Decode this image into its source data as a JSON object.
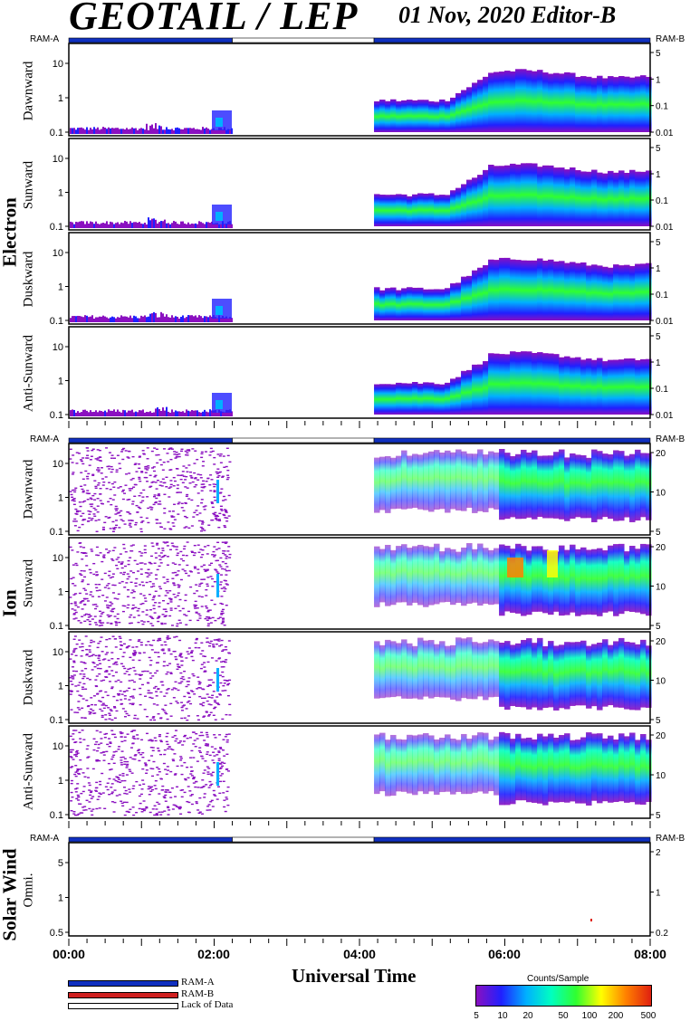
{
  "header": {
    "title": "GEOTAIL / LEP",
    "date_editor": "01 Nov, 2020   Editor-B"
  },
  "groups": {
    "electron": "Electron",
    "ion": "Ion",
    "solar_wind": "Solar Wind"
  },
  "ram_labels": {
    "a": "RAM-A",
    "b": "RAM-B"
  },
  "x_axis": {
    "label": "Universal Time",
    "ticks": [
      "00:00",
      "02:00",
      "04:00",
      "06:00",
      "08:00"
    ]
  },
  "legend": {
    "items": [
      {
        "label": "RAM-A",
        "color": "#1030c0"
      },
      {
        "label": "RAM-B",
        "color": "#d02020"
      },
      {
        "label": "Lack of Data",
        "color": "#ffffff"
      }
    ]
  },
  "colorbar": {
    "title": "Counts/Sample",
    "ticks": [
      "5",
      "10",
      "20",
      "50",
      "100",
      "200",
      "500"
    ]
  },
  "colors": {
    "ram_a": "#1030c0",
    "ram_b": "#d02020",
    "spectrum": [
      "#8a10c0",
      "#2020ff",
      "#00b0ff",
      "#00ffc0",
      "#30ff30",
      "#ffff00",
      "#ff8000",
      "#e02010"
    ]
  },
  "chart_data": {
    "type": "heatmap",
    "x_range_hours": [
      0,
      8
    ],
    "data_gap_hours": [
      2.25,
      4.2
    ],
    "ram_status": [
      {
        "mode": "RAM-A",
        "from_hours": 0,
        "to_hours": 2.25
      },
      {
        "mode": "Lack of Data",
        "from_hours": 2.25,
        "to_hours": 4.2
      },
      {
        "mode": "RAM-A",
        "from_hours": 4.2,
        "to_hours": 8
      }
    ],
    "panels": [
      {
        "id": "e-dawn",
        "group": "Electron",
        "label": "Dawnward",
        "y_left_ticks": [
          "0.1",
          "1",
          "10"
        ],
        "y_right_ticks": [
          "0.01",
          "0.1",
          "1",
          "5"
        ]
      },
      {
        "id": "e-sun",
        "group": "Electron",
        "label": "Sunward",
        "y_left_ticks": [
          "0.1",
          "1",
          "10"
        ],
        "y_right_ticks": [
          "0.01",
          "0.1",
          "1",
          "5"
        ]
      },
      {
        "id": "e-dusk",
        "group": "Electron",
        "label": "Duskward",
        "y_left_ticks": [
          "0.1",
          "1",
          "10"
        ],
        "y_right_ticks": [
          "0.01",
          "0.1",
          "1",
          "5"
        ]
      },
      {
        "id": "e-anti",
        "group": "Electron",
        "label": "Anti-Sunward",
        "y_left_ticks": [
          "0.1",
          "1",
          "10"
        ],
        "y_right_ticks": [
          "0.01",
          "0.1",
          "1",
          "5"
        ]
      },
      {
        "id": "i-dawn",
        "group": "Ion",
        "label": "Dawnward",
        "y_left_ticks": [
          "0.1",
          "1",
          "10"
        ],
        "y_right_ticks": [
          "5",
          "10",
          "20"
        ]
      },
      {
        "id": "i-sun",
        "group": "Ion",
        "label": "Sunward",
        "y_left_ticks": [
          "0.1",
          "1",
          "10"
        ],
        "y_right_ticks": [
          "5",
          "10",
          "20"
        ]
      },
      {
        "id": "i-dusk",
        "group": "Ion",
        "label": "Duskward",
        "y_left_ticks": [
          "0.1",
          "1",
          "10"
        ],
        "y_right_ticks": [
          "5",
          "10",
          "20"
        ]
      },
      {
        "id": "i-anti",
        "group": "Ion",
        "label": "Anti-Sunward",
        "y_left_ticks": [
          "0.1",
          "1",
          "10"
        ],
        "y_right_ticks": [
          "5",
          "10",
          "20"
        ]
      },
      {
        "id": "sw-omni",
        "group": "Solar Wind",
        "label": "Omni.",
        "y_left_ticks": [
          "0.5",
          "1",
          "5"
        ],
        "y_right_ticks": [
          "0.2",
          "1",
          "2"
        ]
      }
    ]
  }
}
